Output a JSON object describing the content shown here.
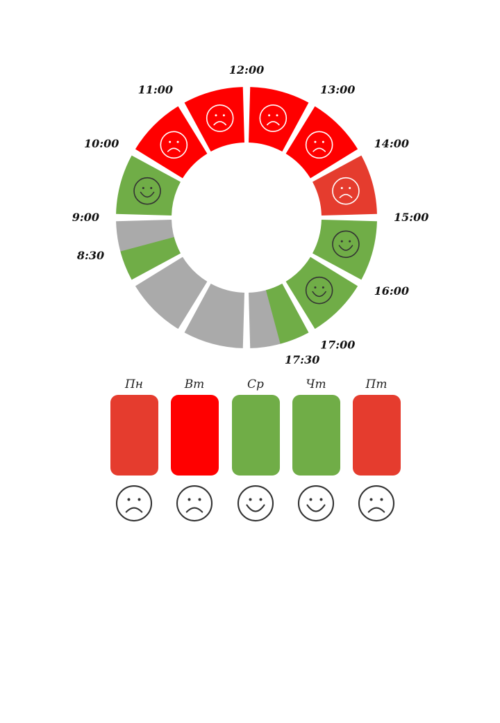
{
  "colors": {
    "bright_red": "#ff0000",
    "muted_red": "#e53c2e",
    "green": "#70ad47",
    "gray": "#aaaaaa",
    "face_light": "#ffffff",
    "face_dark": "#333333"
  },
  "time_labels": [
    "8:30",
    "9:00",
    "10:00",
    "11:00",
    "12:00",
    "13:00",
    "14:00",
    "15:00",
    "16:00",
    "17:00",
    "17:30"
  ],
  "segments": [
    {
      "color": "green",
      "mood": "happy"
    },
    {
      "color": "bright_red",
      "mood": "sad"
    },
    {
      "color": "bright_red",
      "mood": "sad"
    },
    {
      "color": "bright_red",
      "mood": "sad"
    },
    {
      "color": "bright_red",
      "mood": "sad"
    },
    {
      "color": "muted_red",
      "mood": "sad"
    },
    {
      "color": "green",
      "mood": "happy"
    },
    {
      "color": "green",
      "mood": "happy"
    },
    {
      "color": "gray",
      "mood": "",
      "partial": {
        "color": "green",
        "fraction": 0.5
      }
    },
    {
      "color": "gray",
      "mood": ""
    },
    {
      "color": "gray",
      "mood": ""
    },
    {
      "color": "gray",
      "mood": "",
      "partial": {
        "color": "green",
        "fraction": 0.5
      }
    }
  ],
  "days": [
    {
      "name": "Пн",
      "color": "muted_red",
      "mood": "sad"
    },
    {
      "name": "Вт",
      "color": "bright_red",
      "mood": "sad"
    },
    {
      "name": "Ср",
      "color": "green",
      "mood": "happy"
    },
    {
      "name": "Чт",
      "color": "green",
      "mood": "happy"
    },
    {
      "name": "Пт",
      "color": "muted_red",
      "mood": "sad"
    }
  ]
}
